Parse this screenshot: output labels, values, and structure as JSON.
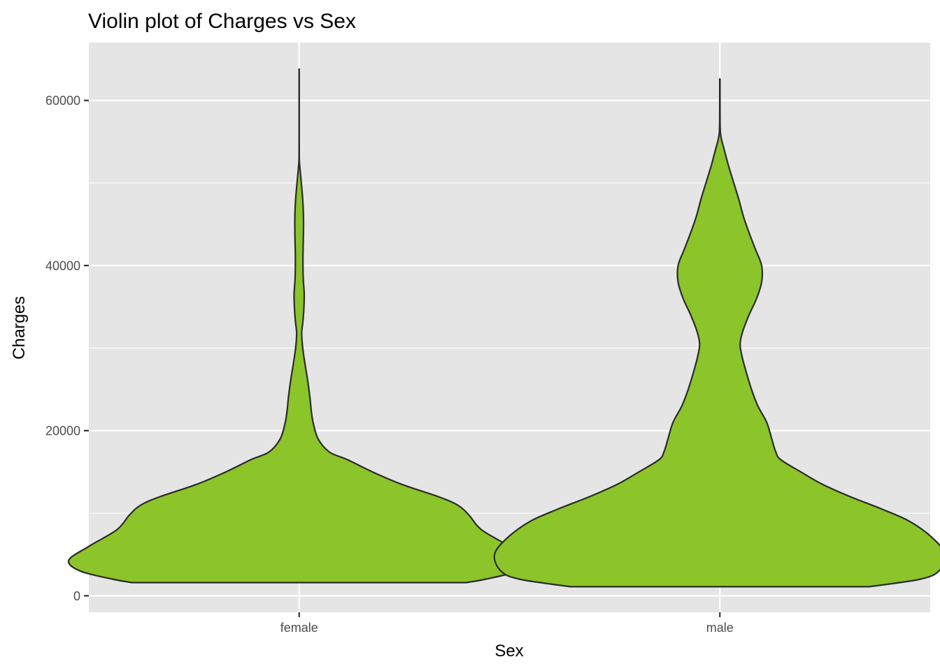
{
  "chart_data": {
    "type": "violin",
    "title": "Violin plot of Charges vs Sex",
    "xlabel": "Sex",
    "ylabel": "Charges",
    "categories": [
      "female",
      "male"
    ],
    "ylim": [
      -2000,
      67000
    ],
    "yticks": [
      0,
      20000,
      40000,
      60000
    ],
    "ytick_labels": [
      "0",
      "20000",
      "40000",
      "60000"
    ],
    "grid": true,
    "legend": "none",
    "fill_color": "#8BC52A",
    "outline_color": "#2B2B2B",
    "panel_color": "#E5E5E5",
    "gridline_color": "#FFFFFF",
    "violins": [
      {
        "category": "female",
        "min": 1600,
        "max": 63800,
        "profile": [
          [
            1600,
            13.2
          ],
          [
            2000,
            14.7
          ],
          [
            3000,
            17.3
          ],
          [
            4300,
            18.2
          ],
          [
            6000,
            16.6
          ],
          [
            8000,
            14.4
          ],
          [
            9800,
            13.4
          ],
          [
            11000,
            12.5
          ],
          [
            12000,
            11.0
          ],
          [
            13500,
            8.1
          ],
          [
            15000,
            5.8
          ],
          [
            16500,
            3.8
          ],
          [
            17400,
            2.4
          ],
          [
            19000,
            1.5
          ],
          [
            21000,
            1.1
          ],
          [
            22500,
            0.95
          ],
          [
            24000,
            0.85
          ],
          [
            26000,
            0.68
          ],
          [
            28000,
            0.47
          ],
          [
            30000,
            0.28
          ],
          [
            31800,
            0.2
          ],
          [
            33000,
            0.28
          ],
          [
            34500,
            0.36
          ],
          [
            36500,
            0.4
          ],
          [
            38500,
            0.32
          ],
          [
            41000,
            0.3
          ],
          [
            44000,
            0.34
          ],
          [
            46000,
            0.34
          ],
          [
            48000,
            0.28
          ],
          [
            50000,
            0.17
          ],
          [
            52000,
            0.05
          ],
          [
            53000,
            0.01
          ],
          [
            56000,
            0.005
          ],
          [
            63800,
            0.005
          ]
        ]
      },
      {
        "category": "male",
        "min": 1100,
        "max": 62600,
        "profile": [
          [
            1100,
            11.8
          ],
          [
            2000,
            15.8
          ],
          [
            3000,
            17.3
          ],
          [
            5000,
            17.8
          ],
          [
            7000,
            16.8
          ],
          [
            9000,
            15.0
          ],
          [
            10500,
            12.8
          ],
          [
            12000,
            10.3
          ],
          [
            13500,
            8.1
          ],
          [
            15000,
            6.4
          ],
          [
            16500,
            4.8
          ],
          [
            17500,
            4.4
          ],
          [
            19000,
            4.1
          ],
          [
            21000,
            3.7
          ],
          [
            23000,
            3.0
          ],
          [
            25000,
            2.5
          ],
          [
            27000,
            2.1
          ],
          [
            29000,
            1.75
          ],
          [
            30500,
            1.6
          ],
          [
            32000,
            1.8
          ],
          [
            34000,
            2.3
          ],
          [
            36000,
            2.9
          ],
          [
            38000,
            3.3
          ],
          [
            40000,
            3.3
          ],
          [
            42000,
            2.8
          ],
          [
            44000,
            2.3
          ],
          [
            46000,
            1.85
          ],
          [
            48000,
            1.5
          ],
          [
            50000,
            1.1
          ],
          [
            52000,
            0.7
          ],
          [
            54000,
            0.35
          ],
          [
            55500,
            0.1
          ],
          [
            57000,
            0.02
          ],
          [
            62600,
            0.01
          ]
        ]
      }
    ]
  }
}
